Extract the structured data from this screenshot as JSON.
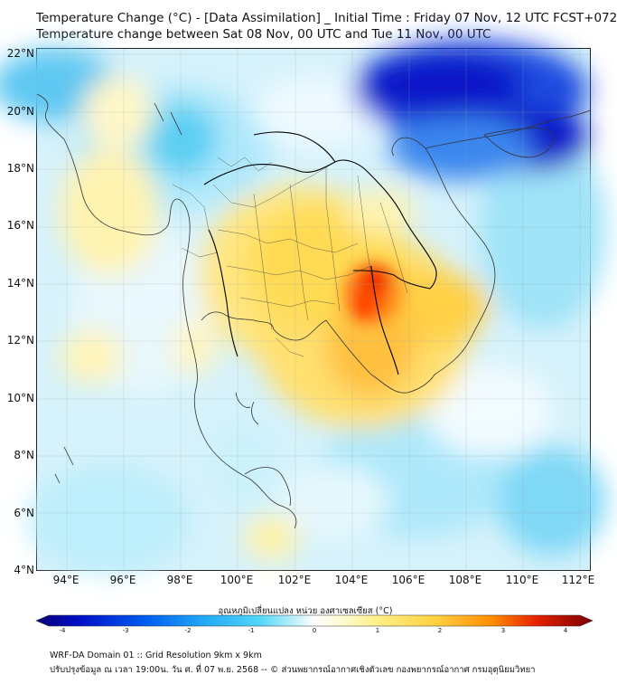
{
  "title_line1": "Temperature Change (°C) - [Data Assimilation] _ Initial Time : Friday 07 Nov, 12 UTC FCST+072",
  "title_line2": "Temperature change between Sat 08 Nov, 00 UTC and Tue 11 Nov, 00 UTC",
  "map": {
    "lat_labels": [
      "22°N",
      "20°N",
      "18°N",
      "16°N",
      "14°N",
      "12°N",
      "10°N",
      "8°N",
      "6°N",
      "4°N"
    ],
    "lon_labels": [
      "94°E",
      "96°E",
      "98°E",
      "100°E",
      "102°E",
      "104°E",
      "106°E",
      "108°E",
      "110°E",
      "112°E"
    ],
    "lat_range": [
      4,
      22
    ],
    "lon_range": [
      93,
      112.5
    ],
    "colors": {
      "cold_extreme": "#0010c8",
      "cold": "#1e90ff",
      "cool": "#40d0f0",
      "neutral": "#ffffff",
      "warm": "#ffe24a",
      "hot": "#ff8c00",
      "hot_extreme": "#e60000"
    }
  },
  "colorbar": {
    "title": "อุณหภูมิเปลี่ยนแปลง หน่วย องศาเซลเซียส (°C)",
    "ticks": [
      "-4",
      "-3",
      "-2",
      "-1",
      "0",
      "1",
      "2",
      "3",
      "4"
    ],
    "range": [
      -4,
      4
    ]
  },
  "footer_line1": "WRF-DA Domain 01 :: Grid Resolution 9km x 9km",
  "footer_line2": "ปรับปรุงข้อมูล ณ เวลา 19:00น. วัน ศ. ที่ 07 พ.ย. 2568 -- © ส่วนพยากรณ์อากาศเชิงตัวเลข กองพยากรณ์อากาศ กรมอุตุนิยมวิทยา"
}
